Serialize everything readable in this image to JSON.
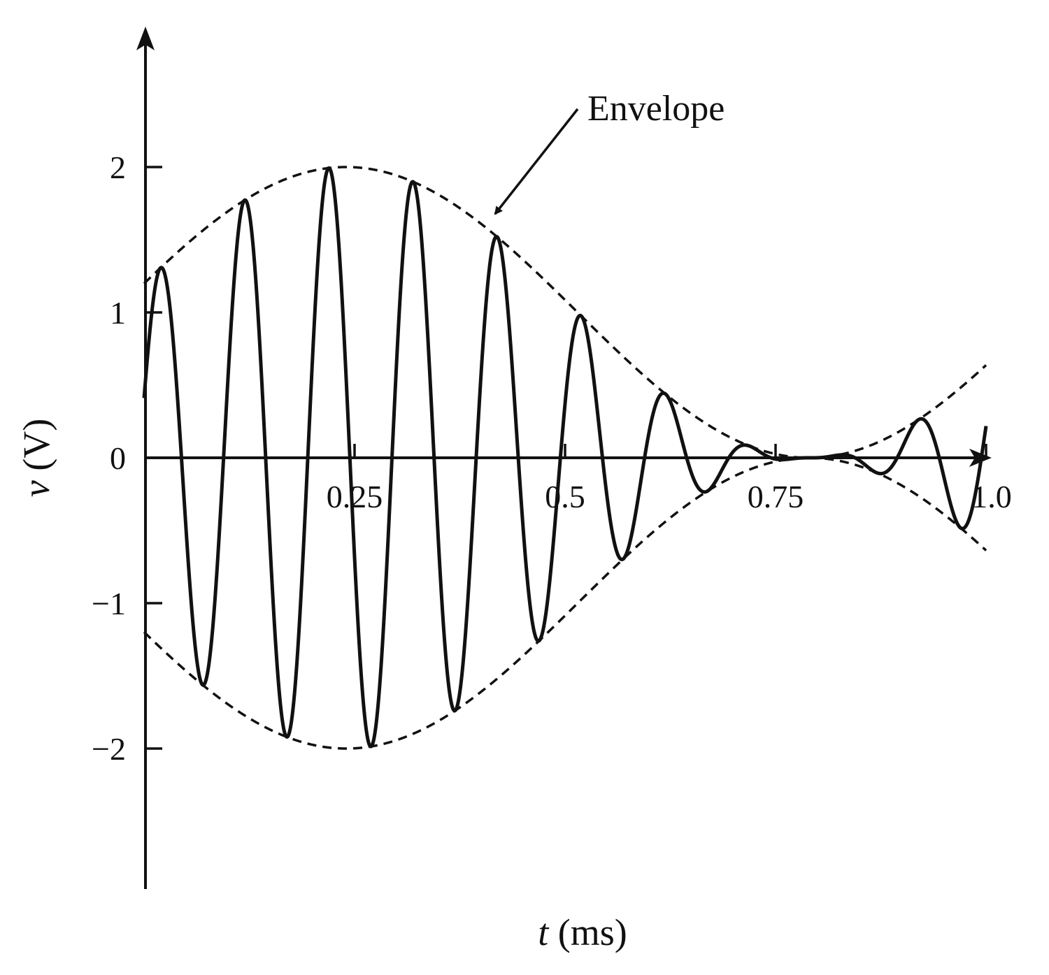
{
  "chart_data": {
    "type": "line",
    "xlabel_var": "t",
    "xlabel_unit": " (ms)",
    "ylabel_var": "v",
    "ylabel_unit": " (V)",
    "x_ticks": [
      {
        "value": 0.25,
        "label": "0.25"
      },
      {
        "value": 0.5,
        "label": "0.5"
      },
      {
        "value": 0.75,
        "label": "0.75"
      },
      {
        "value": 1.0,
        "label": "1.0"
      }
    ],
    "y_ticks": [
      {
        "value": 2,
        "label": "2"
      },
      {
        "value": 1,
        "label": "1"
      },
      {
        "value": 0,
        "label": "0"
      },
      {
        "value": -1,
        "label": "−1"
      },
      {
        "value": -2,
        "label": "−2"
      }
    ],
    "xlim": [
      0,
      1.0
    ],
    "ylim": [
      -2.9,
      2.9
    ],
    "grid": false,
    "series": [
      {
        "style": "solid",
        "color": "#111111",
        "function": "(1 + cos(2*pi*1000*t + pi*t0)) * sin(2*pi*10000*t)",
        "amplitude": 1,
        "carrier_frequency_khz": 10,
        "modulation_frequency_khz": 1,
        "points": [
          {
            "x": 0.02,
            "y": 1.12
          },
          {
            "x": 0.07,
            "y": -1.42
          },
          {
            "x": 0.12,
            "y": 1.7
          },
          {
            "x": 0.17,
            "y": -1.85
          },
          {
            "x": 0.22,
            "y": 1.97
          },
          {
            "x": 0.28,
            "y": -1.95
          },
          {
            "x": 0.33,
            "y": 1.83
          },
          {
            "x": 0.38,
            "y": -1.58
          },
          {
            "x": 0.42,
            "y": 1.37
          },
          {
            "x": 0.48,
            "y": -1.1
          },
          {
            "x": 0.53,
            "y": 0.88
          },
          {
            "x": 0.58,
            "y": -0.6
          },
          {
            "x": 0.63,
            "y": 0.37
          },
          {
            "x": 0.68,
            "y": -0.15
          },
          {
            "x": 0.73,
            "y": 0.05
          },
          {
            "x": 0.78,
            "y": -0.03
          },
          {
            "x": 0.83,
            "y": 0.12
          },
          {
            "x": 0.88,
            "y": -0.22
          },
          {
            "x": 0.92,
            "y": 0.5
          },
          {
            "x": 0.98,
            "y": -0.73
          }
        ]
      },
      {
        "name": "Envelope",
        "style": "dashed",
        "color": "#111111",
        "upper_function": "1 + cos(2*pi*(t - 0.24)/1.1)",
        "lower_function": "-(1 + cos(2*pi*(t - 0.24)/1.1))"
      }
    ],
    "annotation": {
      "text": "Envelope",
      "points_to": {
        "x": 0.42,
        "y": 1.6
      }
    }
  }
}
